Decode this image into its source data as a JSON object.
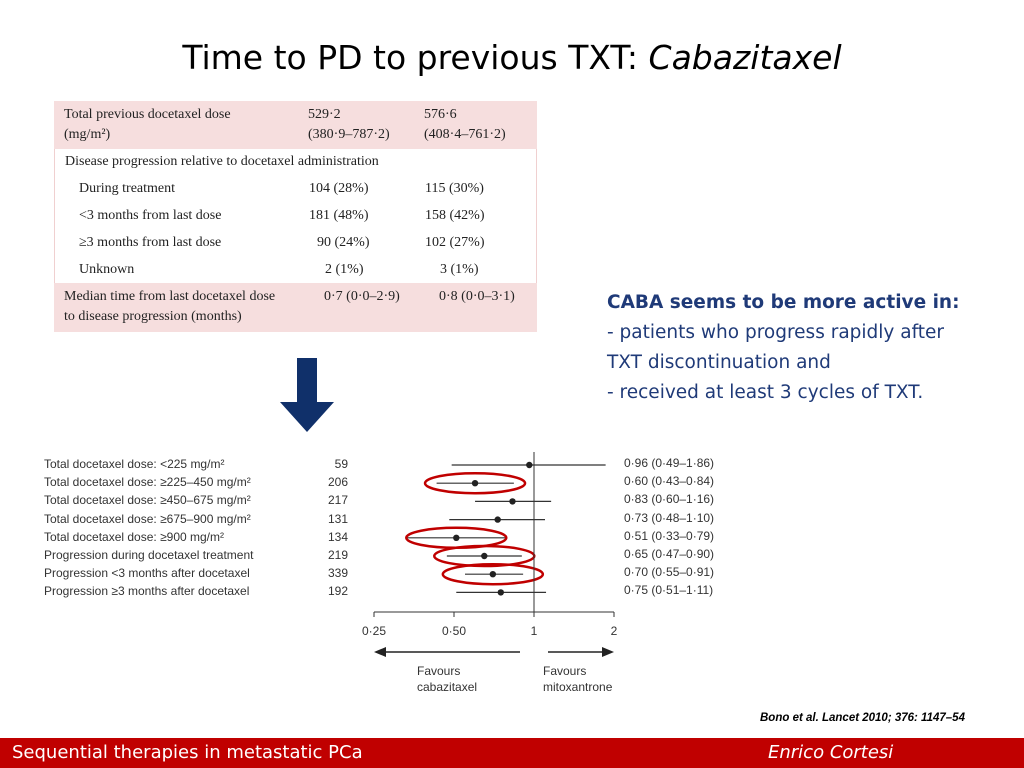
{
  "slide": {
    "title_plain": "Time to PD to previous TXT: ",
    "title_italic": "Cabazitaxel"
  },
  "table": {
    "dose": {
      "label1": "Total previous docetaxel dose",
      "label2": "(mg/m²)",
      "a1": "529·2",
      "a2": "(380·9–787·2)",
      "b1": "576·6",
      "b2": "(408·4–761·2)"
    },
    "section": "Disease progression relative to docetaxel administration",
    "rows": [
      {
        "label": "During treatment",
        "a": "104 (28%)",
        "b": "115 (30%)"
      },
      {
        "label": "<3 months from last dose",
        "a": "181 (48%)",
        "b": "158 (42%)"
      },
      {
        "label": "≥3 months from last dose",
        "a": "90 (24%)",
        "b": "102 (27%)"
      },
      {
        "label": "Unknown",
        "a": "2 (1%)",
        "b": "3 (1%)"
      }
    ],
    "median": {
      "label1": "Median time from last docetaxel dose",
      "label2": "to disease progression (months)",
      "a": "0·7 (0·0–2·9)",
      "b": "0·8 (0·0–3·1)"
    }
  },
  "note": {
    "head": "CABA seems to be more active in:",
    "line1": "- patients who progress rapidly after",
    "line2": "TXT discontinuation and",
    "line3": "- received at least 3 cycles of TXT."
  },
  "forest": {
    "rows": [
      {
        "label": "Total docetaxel dose: <225 mg/m²",
        "n": "59",
        "hr": 0.96,
        "lo": 0.49,
        "hi": 1.86,
        "ci": "0·96 (0·49–1·86)",
        "circled": false
      },
      {
        "label": "Total docetaxel dose: ≥225–450 mg/m²",
        "n": "206",
        "hr": 0.6,
        "lo": 0.43,
        "hi": 0.84,
        "ci": "0·60 (0·43–0·84)",
        "circled": true
      },
      {
        "label": "Total docetaxel dose: ≥450–675 mg/m²",
        "n": "217",
        "hr": 0.83,
        "lo": 0.6,
        "hi": 1.16,
        "ci": "0·83 (0·60–1·16)",
        "circled": false
      },
      {
        "label": "Total docetaxel dose: ≥675–900 mg/m²",
        "n": "131",
        "hr": 0.73,
        "lo": 0.48,
        "hi": 1.1,
        "ci": "0·73 (0·48–1·10)",
        "circled": false
      },
      {
        "label": "Total docetaxel dose: ≥900 mg/m²",
        "n": "134",
        "hr": 0.51,
        "lo": 0.33,
        "hi": 0.79,
        "ci": "0·51 (0·33–0·79)",
        "circled": true
      },
      {
        "label": "Progression during docetaxel treatment",
        "n": "219",
        "hr": 0.65,
        "lo": 0.47,
        "hi": 0.9,
        "ci": "0·65 (0·47–0·90)",
        "circled": true
      },
      {
        "label": "Progression <3 months after docetaxel",
        "n": "339",
        "hr": 0.7,
        "lo": 0.55,
        "hi": 0.91,
        "ci": "0·70 (0·55–0·91)",
        "circled": true
      },
      {
        "label": "Progression ≥3 months after docetaxel",
        "n": "192",
        "hr": 0.75,
        "lo": 0.51,
        "hi": 1.11,
        "ci": "0·75 (0·51–1·11)",
        "circled": false
      }
    ],
    "ticks": [
      {
        "value": 0.25,
        "label": "0·25"
      },
      {
        "value": 0.5,
        "label": "0·50"
      },
      {
        "value": 1,
        "label": "1"
      },
      {
        "value": 2,
        "label": "2"
      }
    ],
    "favours_left1": "Favours",
    "favours_left2": "cabazitaxel",
    "favours_right1": "Favours",
    "favours_right2": "mitoxantrone",
    "circle_color": "#c00000"
  },
  "chart_data": {
    "type": "scatter",
    "x_scale": "log",
    "xlim": [
      0.25,
      2
    ],
    "categories": [
      "Total docetaxel dose: <225 mg/m²",
      "Total docetaxel dose: ≥225–450 mg/m²",
      "Total docetaxel dose: ≥450–675 mg/m²",
      "Total docetaxel dose: ≥675–900 mg/m²",
      "Total docetaxel dose: ≥900 mg/m²",
      "Progression during docetaxel treatment",
      "Progression <3 months after docetaxel",
      "Progression ≥3 months after docetaxel"
    ],
    "values": [
      0.96,
      0.6,
      0.83,
      0.73,
      0.51,
      0.65,
      0.7,
      0.75
    ],
    "lower": [
      0.49,
      0.43,
      0.6,
      0.48,
      0.33,
      0.47,
      0.55,
      0.51
    ],
    "upper": [
      1.86,
      0.84,
      1.16,
      1.1,
      0.79,
      0.9,
      0.91,
      1.11
    ]
  },
  "citation": "Bono et al. Lancet 2010; 376: 1147–54",
  "footer": {
    "left": "Sequential therapies in metastatic PCa",
    "right": "Enrico  Cortesi"
  }
}
